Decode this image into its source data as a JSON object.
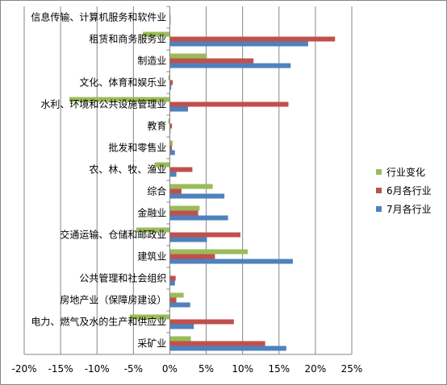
{
  "chart_data": {
    "type": "bar",
    "orientation": "horizontal",
    "title": "",
    "xlabel": "",
    "ylabel": "",
    "xlim": [
      -0.2,
      0.25
    ],
    "x_ticks": [
      -0.2,
      -0.15,
      -0.1,
      -0.05,
      0.0,
      0.05,
      0.1,
      0.15,
      0.2,
      0.25
    ],
    "x_tick_labels": [
      "-20%",
      "-15%",
      "-10%",
      "-5%",
      "0%",
      "5%",
      "10%",
      "15%",
      "20%",
      "25%"
    ],
    "grid": true,
    "legend_position": "right",
    "categories": [
      "信息传输、计算机服务和软件业",
      "租赁和商务服务业",
      "制造业",
      "文化、体育和娱乐业",
      "水利、环境和公共设施管理业",
      "教育",
      "批发和零售业",
      "农、林、牧、渔业",
      "综合",
      "金融业",
      "交通运输、仓储和邮政业",
      "建筑业",
      "公共管理和社会组织",
      "房地产业（保障房建设）",
      "电力、燃气及水的生产和供应业",
      "采矿业"
    ],
    "series": [
      {
        "name": "行业变化",
        "color": "#9BBB59",
        "values": [
          0.0,
          -0.037,
          0.051,
          -0.002,
          -0.138,
          -0.002,
          0.004,
          -0.021,
          0.059,
          0.041,
          -0.046,
          0.107,
          0.001,
          0.019,
          -0.055,
          0.029
        ]
      },
      {
        "name": "6月各行业",
        "color": "#C0504D",
        "values": [
          0.001,
          0.227,
          0.115,
          0.004,
          0.163,
          0.003,
          0.003,
          0.031,
          0.016,
          0.039,
          0.097,
          0.062,
          0.008,
          0.009,
          0.088,
          0.131
        ]
      },
      {
        "name": "7月各行业",
        "color": "#4F81BD",
        "values": [
          0.001,
          0.19,
          0.166,
          0.002,
          0.025,
          0.001,
          0.007,
          0.009,
          0.075,
          0.08,
          0.051,
          0.169,
          0.007,
          0.028,
          0.033,
          0.16
        ]
      }
    ]
  }
}
